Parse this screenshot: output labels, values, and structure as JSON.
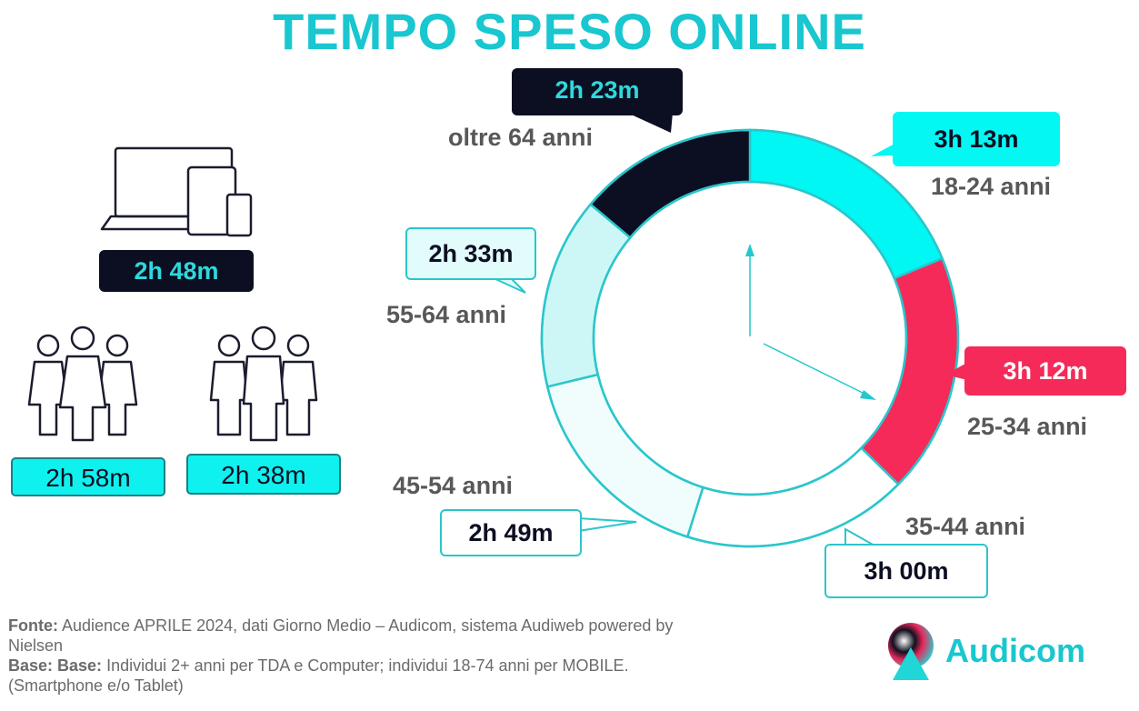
{
  "title": "TEMPO SPESO ONLINE",
  "chart_data": {
    "type": "pie",
    "style": "donut",
    "title": "TEMPO SPESO ONLINE",
    "slices": [
      {
        "label": "18-24 anni",
        "value_label": "3h 13m",
        "minutes": 193,
        "color": "#00f7f3"
      },
      {
        "label": "25-34 anni",
        "value_label": "3h 12m",
        "minutes": 192,
        "color": "#f52a58"
      },
      {
        "label": "35-44 anni",
        "value_label": "3h 00m",
        "minutes": 180,
        "color": "#ffffff"
      },
      {
        "label": "45-54 anni",
        "value_label": "2h 49m",
        "minutes": 169,
        "color": "#f1fdfd"
      },
      {
        "label": "55-64 anni",
        "value_label": "2h 33m",
        "minutes": 153,
        "color": "#cdf7f7"
      },
      {
        "label": "oltre 64 anni",
        "value_label": "2h 23m",
        "minutes": 143,
        "color": "#0c0f22"
      }
    ]
  },
  "devices": {
    "icon": "devices-icon",
    "value": "2h 48m"
  },
  "women": {
    "icon": "women-group-icon",
    "value": "2h 58m"
  },
  "men": {
    "icon": "men-group-icon",
    "value": "2h 38m"
  },
  "footer": {
    "fonte_label": "Fonte:",
    "fonte_text": "Audience APRILE 2024, dati Giorno Medio – Audicom, sistema Audiweb powered by Nielsen",
    "base_label": "Base:  Base:",
    "base_text": "Individui 2+ anni per TDA e Computer; individui 18-74 anni per MOBILE.(Smartphone e/o Tablet)"
  },
  "logo": {
    "text": "Audicom",
    "icon": "audicom-logo-icon"
  },
  "colors": {
    "accent": "#18c7cf",
    "dark": "#0c0f22",
    "red": "#f52a58",
    "cyan": "#00f7f3"
  }
}
